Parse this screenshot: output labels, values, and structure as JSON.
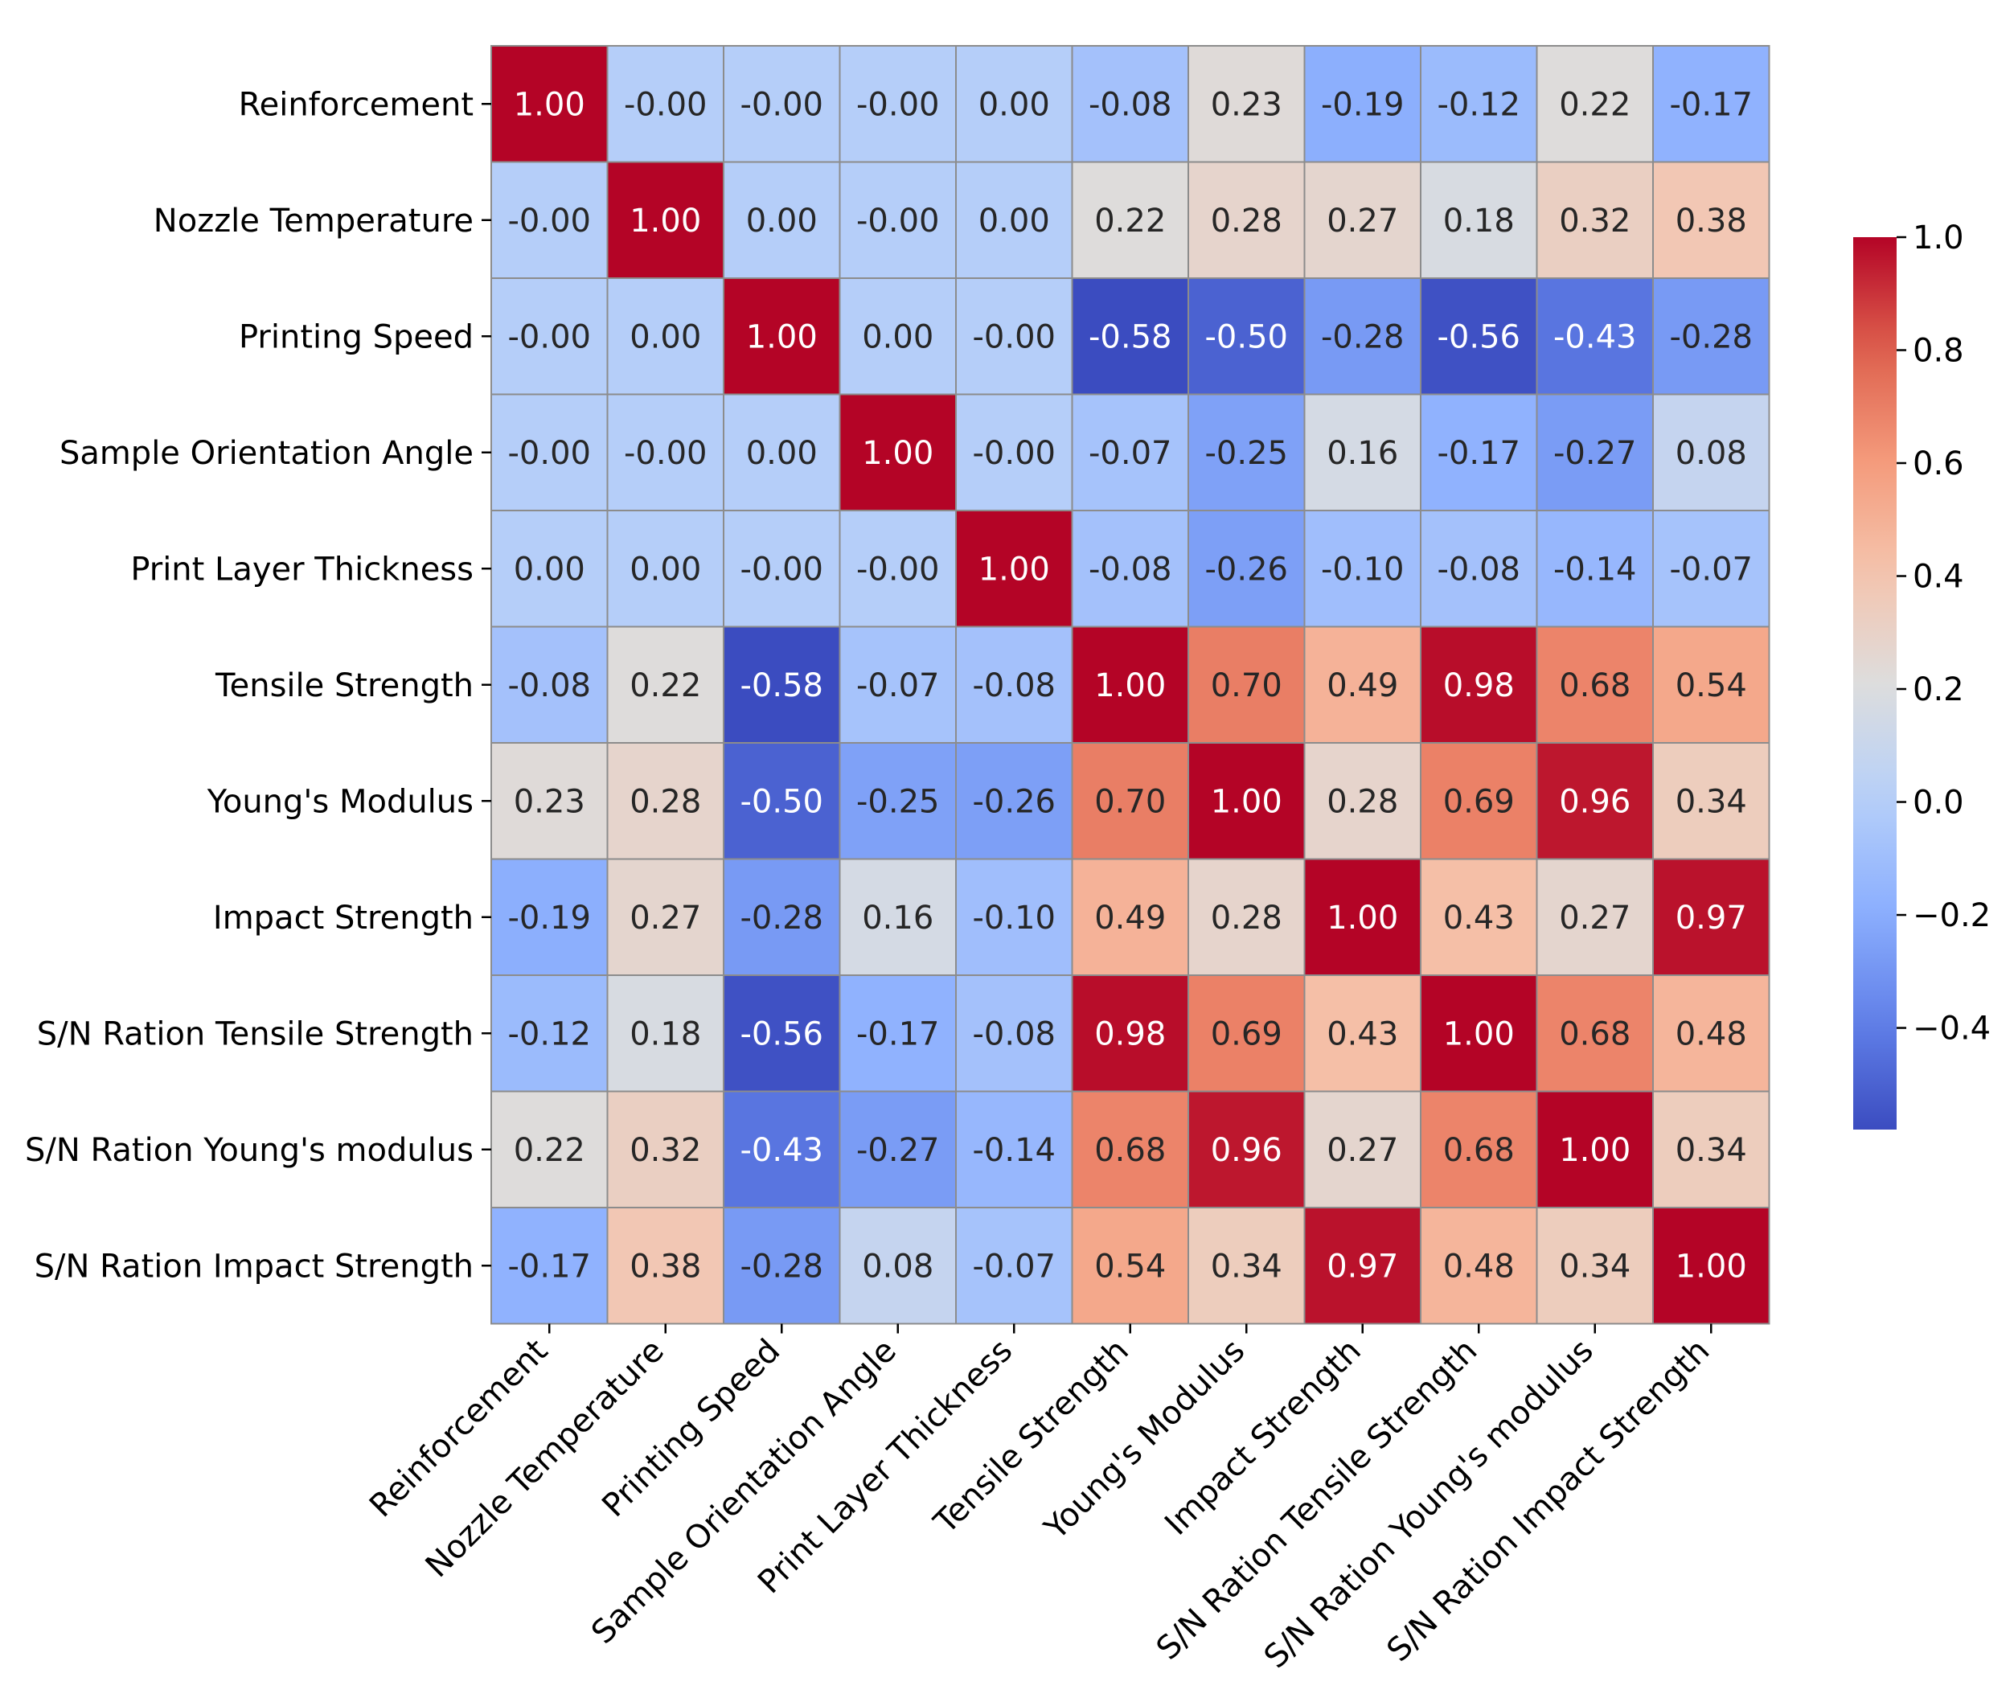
{
  "chart_data": {
    "type": "heatmap",
    "title": "",
    "xlabel": "",
    "ylabel": "",
    "labels": [
      "Reinforcement",
      "Nozzle Temperature",
      "Printing Speed",
      "Sample Orientation Angle",
      "Print Layer Thickness",
      "Tensile Strength",
      "Young's Modulus",
      "Impact Strength",
      "S/N Ration Tensile Strength",
      "S/N Ration Young's modulus",
      "S/N Ration Impact Strength"
    ],
    "values": [
      [
        1.0,
        -0.0,
        -0.0,
        -0.0,
        0.0,
        -0.08,
        0.23,
        -0.19,
        -0.12,
        0.22,
        -0.17
      ],
      [
        -0.0,
        1.0,
        0.0,
        -0.0,
        0.0,
        0.22,
        0.28,
        0.27,
        0.18,
        0.32,
        0.38
      ],
      [
        -0.0,
        0.0,
        1.0,
        0.0,
        -0.0,
        -0.58,
        -0.5,
        -0.28,
        -0.56,
        -0.43,
        -0.28
      ],
      [
        -0.0,
        -0.0,
        0.0,
        1.0,
        -0.0,
        -0.07,
        -0.25,
        0.16,
        -0.17,
        -0.27,
        0.08
      ],
      [
        0.0,
        0.0,
        -0.0,
        -0.0,
        1.0,
        -0.08,
        -0.26,
        -0.1,
        -0.08,
        -0.14,
        -0.07
      ],
      [
        -0.08,
        0.22,
        -0.58,
        -0.07,
        -0.08,
        1.0,
        0.7,
        0.49,
        0.98,
        0.68,
        0.54
      ],
      [
        0.23,
        0.28,
        -0.5,
        -0.25,
        -0.26,
        0.7,
        1.0,
        0.28,
        0.69,
        0.96,
        0.34
      ],
      [
        -0.19,
        0.27,
        -0.28,
        0.16,
        -0.1,
        0.49,
        0.28,
        1.0,
        0.43,
        0.27,
        0.97
      ],
      [
        -0.12,
        0.18,
        -0.56,
        -0.17,
        -0.08,
        0.98,
        0.69,
        0.43,
        1.0,
        0.68,
        0.48
      ],
      [
        0.22,
        0.32,
        -0.43,
        -0.27,
        -0.14,
        0.68,
        0.96,
        0.27,
        0.68,
        1.0,
        0.34
      ],
      [
        -0.17,
        0.38,
        -0.28,
        0.08,
        -0.07,
        0.54,
        0.34,
        0.97,
        0.48,
        0.34,
        1.0
      ]
    ],
    "cell_text": [
      [
        "1.00",
        "-0.00",
        "-0.00",
        "-0.00",
        "0.00",
        "-0.08",
        "0.23",
        "-0.19",
        "-0.12",
        "0.22",
        "-0.17"
      ],
      [
        "-0.00",
        "1.00",
        "0.00",
        "-0.00",
        "0.00",
        "0.22",
        "0.28",
        "0.27",
        "0.18",
        "0.32",
        "0.38"
      ],
      [
        "-0.00",
        "0.00",
        "1.00",
        "0.00",
        "-0.00",
        "-0.58",
        "-0.50",
        "-0.28",
        "-0.56",
        "-0.43",
        "-0.28"
      ],
      [
        "-0.00",
        "-0.00",
        "0.00",
        "1.00",
        "-0.00",
        "-0.07",
        "-0.25",
        "0.16",
        "-0.17",
        "-0.27",
        "0.08"
      ],
      [
        "0.00",
        "0.00",
        "-0.00",
        "-0.00",
        "1.00",
        "-0.08",
        "-0.26",
        "-0.10",
        "-0.08",
        "-0.14",
        "-0.07"
      ],
      [
        "-0.08",
        "0.22",
        "-0.58",
        "-0.07",
        "-0.08",
        "1.00",
        "0.70",
        "0.49",
        "0.98",
        "0.68",
        "0.54"
      ],
      [
        "0.23",
        "0.28",
        "-0.50",
        "-0.25",
        "-0.26",
        "0.70",
        "1.00",
        "0.28",
        "0.69",
        "0.96",
        "0.34"
      ],
      [
        "-0.19",
        "0.27",
        "-0.28",
        "0.16",
        "-0.10",
        "0.49",
        "0.28",
        "1.00",
        "0.43",
        "0.27",
        "0.97"
      ],
      [
        "-0.12",
        "0.18",
        "-0.56",
        "-0.17",
        "-0.08",
        "0.98",
        "0.69",
        "0.43",
        "1.00",
        "0.68",
        "0.48"
      ],
      [
        "0.22",
        "0.32",
        "-0.43",
        "-0.27",
        "-0.14",
        "0.68",
        "0.96",
        "0.27",
        "0.68",
        "1.00",
        "0.34"
      ],
      [
        "-0.17",
        "0.38",
        "-0.28",
        "0.08",
        "-0.07",
        "0.54",
        "0.34",
        "0.97",
        "0.48",
        "0.34",
        "1.00"
      ]
    ],
    "colormap": "coolwarm",
    "vmin": -0.58,
    "vmax": 1.0,
    "colorbar": {
      "ticks": [
        1.0,
        0.8,
        0.6,
        0.4,
        0.2,
        0.0,
        -0.2,
        -0.4
      ],
      "tick_labels": [
        "1.0",
        "0.8",
        "0.6",
        "0.4",
        "0.2",
        "0.0",
        "−0.2",
        "−0.4"
      ],
      "position": "right"
    },
    "grid": true,
    "gridline_color": "#8c8c8c"
  }
}
